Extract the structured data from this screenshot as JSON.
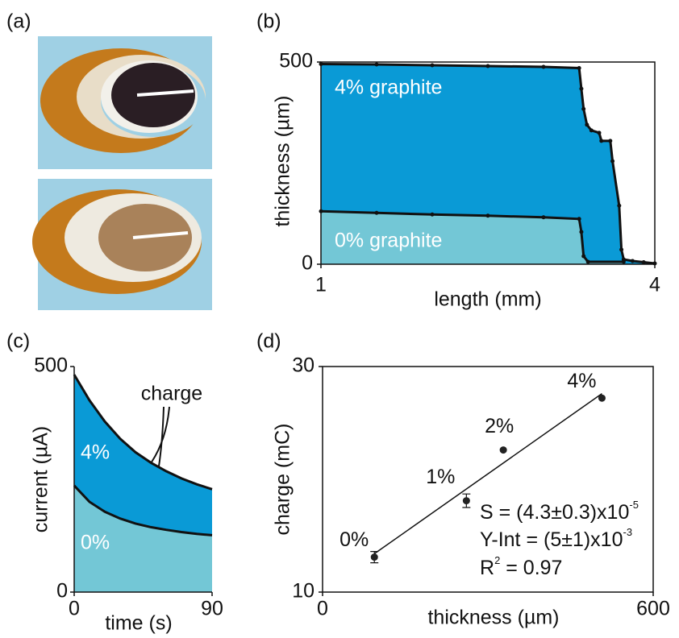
{
  "photo_panel": {
    "label": "(a)"
  },
  "chart_data": [
    {
      "type": "area",
      "panel_label": "(b)",
      "x_label": "length (mm)",
      "y_label": "thickness (µm)",
      "xlim": [
        1,
        4
      ],
      "ylim": [
        0,
        500
      ],
      "xticks": [
        1,
        4
      ],
      "yticks": [
        0,
        500
      ],
      "markers": true,
      "series": [
        {
          "name": "4% graphite",
          "color": "#0a9ad6",
          "x": [
            1,
            1.5,
            2,
            2.5,
            3,
            3.32,
            3.34,
            3.36,
            3.39,
            3.43,
            3.5,
            3.52,
            3.6,
            3.62,
            3.68,
            3.7,
            3.72,
            3.8,
            3.9,
            4
          ],
          "values": [
            495,
            494,
            492,
            490,
            488,
            485,
            434,
            384,
            345,
            331,
            325,
            305,
            305,
            255,
            145,
            36,
            12,
            8,
            5,
            2
          ]
        },
        {
          "name": "0% graphite",
          "color": "#73c7d6",
          "x": [
            1,
            1.5,
            2,
            2.5,
            3,
            3.32,
            3.34,
            3.36,
            3.4,
            3.72
          ],
          "values": [
            131,
            127,
            123,
            120,
            116,
            112,
            80,
            20,
            6,
            6
          ]
        }
      ]
    },
    {
      "type": "area",
      "panel_label": "(c)",
      "x_label": "time (s)",
      "y_label": "current (µA)",
      "xlim": [
        0,
        90
      ],
      "ylim": [
        0,
        500
      ],
      "xticks": [
        0,
        90
      ],
      "yticks": [
        0,
        500
      ],
      "markers": false,
      "annotations": [
        "charge"
      ],
      "series": [
        {
          "name": "4%",
          "color": "#0a9ad6",
          "x": [
            0,
            10,
            20,
            30,
            40,
            50,
            60,
            70,
            80,
            90
          ],
          "values": [
            482,
            425,
            378,
            340,
            310,
            287,
            268,
            252,
            239,
            228
          ]
        },
        {
          "name": "0%",
          "color": "#73c7d6",
          "x": [
            0,
            10,
            20,
            30,
            40,
            50,
            60,
            70,
            80,
            90
          ],
          "values": [
            236,
            200,
            178,
            163,
            152,
            144,
            138,
            133,
            129,
            126
          ]
        }
      ]
    },
    {
      "type": "scatter",
      "panel_label": "(d)",
      "x_label": "thickness (µm)",
      "y_label": "charge (mC)",
      "xlim": [
        0,
        600
      ],
      "ylim": [
        10,
        30
      ],
      "xticks": [
        0,
        600
      ],
      "yticks": [
        10,
        30
      ],
      "series": [
        {
          "color": "#222222",
          "x": [
            94,
            261,
            328,
            507
          ],
          "values": [
            13.1,
            18.1,
            22.6,
            27.2
          ],
          "errors": [
            0.5,
            0.6,
            0,
            0
          ],
          "point_labels": [
            "0%",
            "1%",
            "2%",
            "4%"
          ]
        }
      ],
      "fit": {
        "x": [
          94,
          507
        ],
        "y": [
          13.4,
          27.6
        ]
      },
      "annotations": [
        {
          "text": "S = (4.3±0.3)x10",
          "sup": "-5"
        },
        {
          "text": "Y-Int = (5±1)x10",
          "sup": "-3"
        },
        {
          "text": "R",
          "sup": "2",
          "after": " = 0.97"
        }
      ]
    }
  ]
}
